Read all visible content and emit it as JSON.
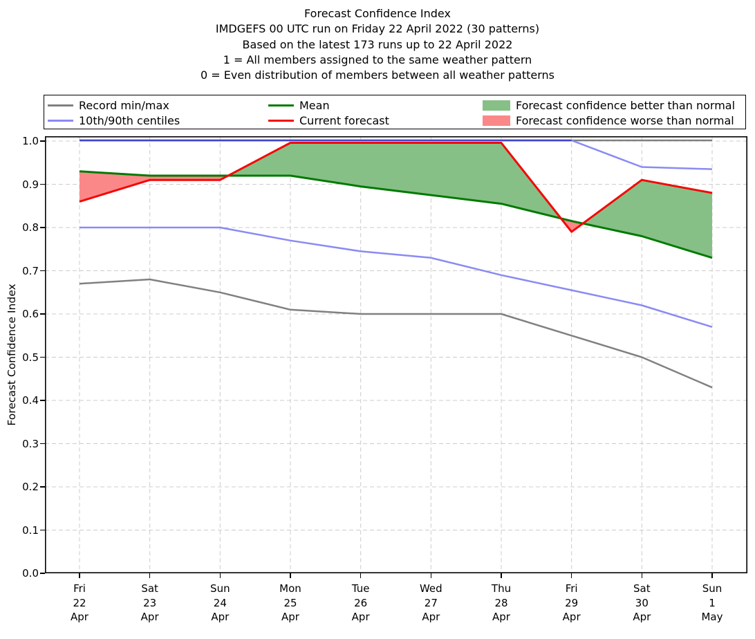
{
  "title": {
    "line1": "Forecast Confidence Index",
    "line2": "IMDGEFS 00 UTC run on Friday 22 April 2022 (30 patterns)",
    "line3": "Based on the latest 173 runs up to 22 April 2022",
    "line4": "1 = All members assigned to the same weather pattern",
    "line5": "0 = Even distribution of members between all weather patterns"
  },
  "legend": {
    "items": [
      {
        "label": "Record min/max",
        "type": "line",
        "color": "#808080"
      },
      {
        "label": "10th/90th centiles",
        "type": "line",
        "color": "#8a8af4"
      },
      {
        "label": "Mean",
        "type": "line",
        "color": "#007a00"
      },
      {
        "label": "Current forecast",
        "type": "line",
        "color": "#f40707"
      },
      {
        "label": "Forecast confidence better than normal",
        "type": "patch",
        "color": "#86c086"
      },
      {
        "label": "Forecast confidence worse than normal",
        "type": "patch",
        "color": "#fa8888"
      }
    ]
  },
  "chart_data": {
    "type": "line",
    "title": "Forecast Confidence Index",
    "xlabel": "",
    "ylabel": "Forecast Confidence Index",
    "ylim": [
      0.0,
      1.0
    ],
    "grid": true,
    "legend_position": "top",
    "yticks": [
      "1.0",
      "0.9",
      "0.8",
      "0.7",
      "0.6",
      "0.5",
      "0.4",
      "0.3",
      "0.2",
      "0.1",
      "0.0"
    ],
    "x_tick_labels": [
      [
        "Fri",
        "22",
        "Apr"
      ],
      [
        "Sat",
        "23",
        "Apr"
      ],
      [
        "Sun",
        "24",
        "Apr"
      ],
      [
        "Mon",
        "25",
        "Apr"
      ],
      [
        "Tue",
        "26",
        "Apr"
      ],
      [
        "Wed",
        "27",
        "Apr"
      ],
      [
        "Thu",
        "28",
        "Apr"
      ],
      [
        "Fri",
        "29",
        "Apr"
      ],
      [
        "Sat",
        "30",
        "Apr"
      ],
      [
        "Sun",
        "1",
        "May"
      ]
    ],
    "series": [
      {
        "name": "Record max",
        "legend": "Record min/max",
        "color": "#808080",
        "width": 2.5,
        "values": [
          1.0,
          1.0,
          1.0,
          1.0,
          1.0,
          1.0,
          1.0,
          1.0,
          1.0,
          1.0
        ]
      },
      {
        "name": "Record min",
        "legend": "Record min/max",
        "color": "#808080",
        "width": 2.5,
        "values": [
          0.67,
          0.68,
          0.65,
          0.61,
          0.6,
          0.6,
          0.6,
          0.55,
          0.5,
          0.43
        ]
      },
      {
        "name": "90th centile",
        "legend": "10th/90th centiles",
        "color": "#8a8af4",
        "width": 2.5,
        "values": [
          1.0,
          1.0,
          1.0,
          1.0,
          1.0,
          1.0,
          1.0,
          1.0,
          0.94,
          0.935
        ],
        "at_max_overlay_color": "#4444cc"
      },
      {
        "name": "10th centile",
        "legend": "10th/90th centiles",
        "color": "#8a8af4",
        "width": 2.5,
        "values": [
          0.8,
          0.8,
          0.8,
          0.77,
          0.745,
          0.73,
          0.69,
          0.655,
          0.62,
          0.57
        ]
      },
      {
        "name": "Mean",
        "legend": "Mean",
        "color": "#007a00",
        "width": 3,
        "values": [
          0.93,
          0.92,
          0.92,
          0.92,
          0.895,
          0.875,
          0.855,
          0.815,
          0.78,
          0.73
        ]
      },
      {
        "name": "Current forecast",
        "legend": "Current forecast",
        "color": "#f40707",
        "width": 3,
        "values": [
          0.86,
          0.91,
          0.91,
          1.0,
          1.0,
          1.0,
          1.0,
          0.79,
          0.91,
          0.88
        ]
      }
    ],
    "fills": [
      {
        "name": "better than normal",
        "color": "#86c086",
        "where": "current > mean"
      },
      {
        "name": "worse than normal",
        "color": "#fa8888",
        "where": "current < mean"
      }
    ],
    "grid_color": "#cccccc",
    "axis_color": "#000000"
  }
}
